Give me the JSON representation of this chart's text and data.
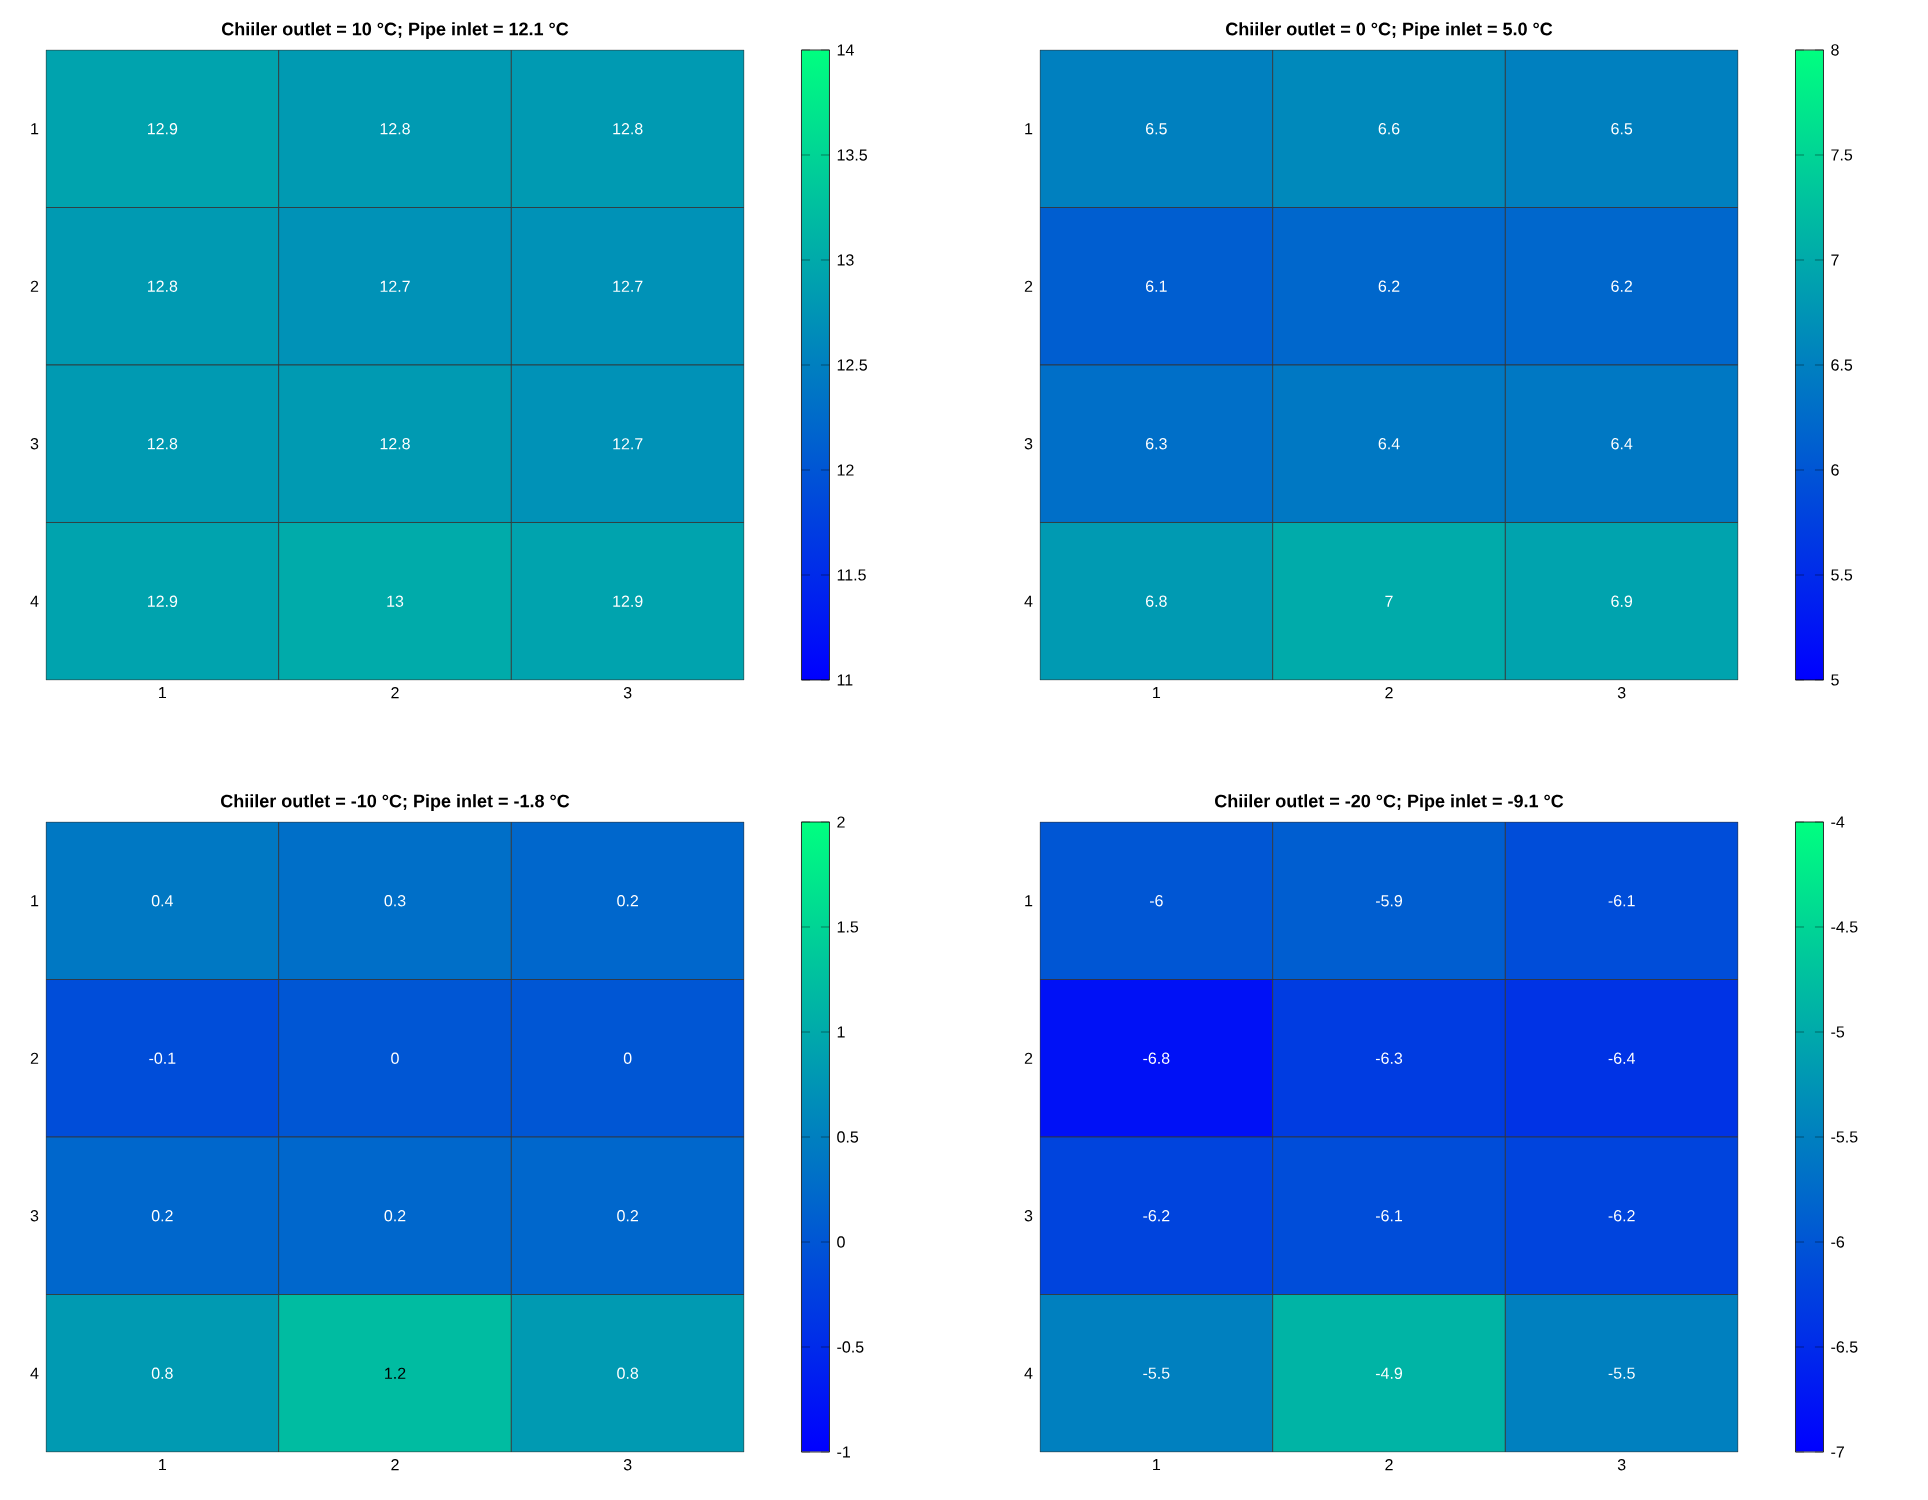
{
  "chart_data": [
    {
      "type": "heatmap",
      "title": "Chiiler outlet = 10 °C; Pipe inlet = 12.1 °C",
      "categories": [
        "1",
        "2",
        "3"
      ],
      "y_categories": [
        "1",
        "2",
        "3",
        "4"
      ],
      "cells": [
        [
          12.9,
          12.8,
          12.8
        ],
        [
          12.8,
          12.7,
          12.7
        ],
        [
          12.8,
          12.8,
          12.7
        ],
        [
          12.9,
          13,
          12.9
        ]
      ],
      "clim": [
        11,
        14
      ],
      "cticks": [
        11,
        11.5,
        12,
        12.5,
        13,
        13.5,
        14
      ],
      "data_labels": true
    },
    {
      "type": "heatmap",
      "title": "Chiiler outlet = 0 °C; Pipe inlet = 5.0 °C",
      "categories": [
        "1",
        "2",
        "3"
      ],
      "y_categories": [
        "1",
        "2",
        "3",
        "4"
      ],
      "cells": [
        [
          6.5,
          6.6,
          6.5
        ],
        [
          6.1,
          6.2,
          6.2
        ],
        [
          6.3,
          6.4,
          6.4
        ],
        [
          6.8,
          7,
          6.9
        ]
      ],
      "clim": [
        5,
        8
      ],
      "cticks": [
        5,
        5.5,
        6,
        6.5,
        7,
        7.5,
        8
      ],
      "data_labels": true
    },
    {
      "type": "heatmap",
      "title": "Chiiler outlet = -10 °C; Pipe inlet = -1.8 °C",
      "categories": [
        "1",
        "2",
        "3"
      ],
      "y_categories": [
        "1",
        "2",
        "3",
        "4"
      ],
      "cells": [
        [
          0.4,
          0.3,
          0.2
        ],
        [
          -0.1,
          0,
          0
        ],
        [
          0.2,
          0.2,
          0.2
        ],
        [
          0.8,
          1.2,
          0.8
        ]
      ],
      "clim": [
        -1,
        2
      ],
      "cticks": [
        -1,
        -0.5,
        0,
        0.5,
        1,
        1.5,
        2
      ],
      "data_labels": true
    },
    {
      "type": "heatmap",
      "title": "Chiiler outlet = -20 °C; Pipe inlet = -9.1 °C",
      "categories": [
        "1",
        "2",
        "3"
      ],
      "y_categories": [
        "1",
        "2",
        "3",
        "4"
      ],
      "cells": [
        [
          -6,
          -5.9,
          -6.1
        ],
        [
          -6.8,
          -6.3,
          -6.4
        ],
        [
          -6.2,
          -6.1,
          -6.2
        ],
        [
          -5.5,
          -4.9,
          -5.5
        ]
      ],
      "clim": [
        -7,
        -4
      ],
      "cticks": [
        -7,
        -6.5,
        -6,
        -5.5,
        -5,
        -4.5,
        -4
      ],
      "data_labels": true
    }
  ]
}
